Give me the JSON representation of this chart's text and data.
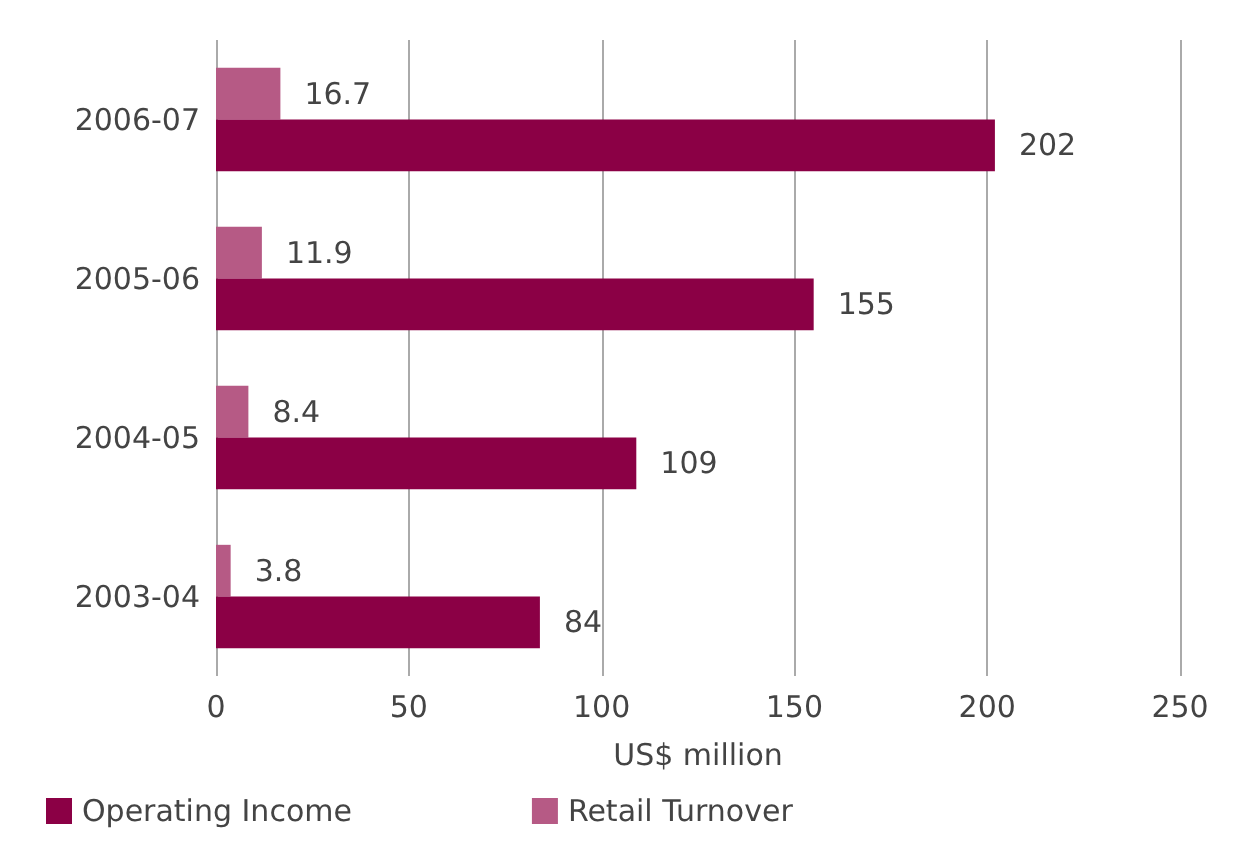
{
  "chart_data": {
    "type": "bar",
    "orientation": "horizontal",
    "categories": [
      "2006-07",
      "2005-06",
      "2004-05",
      "2003-04"
    ],
    "series": [
      {
        "name": "Operating Income",
        "color": "#8b0045",
        "values": [
          202,
          155,
          109,
          84
        ]
      },
      {
        "name": "Retail Turnover",
        "color": "#b65a85",
        "values": [
          16.7,
          11.9,
          8.4,
          3.8
        ]
      }
    ],
    "xlim": [
      0,
      250
    ],
    "xticks": [
      0,
      50,
      100,
      150,
      200,
      250
    ],
    "xlabel": "US$ million",
    "grid": "x",
    "legend": "bottom left",
    "data_labels": true
  }
}
